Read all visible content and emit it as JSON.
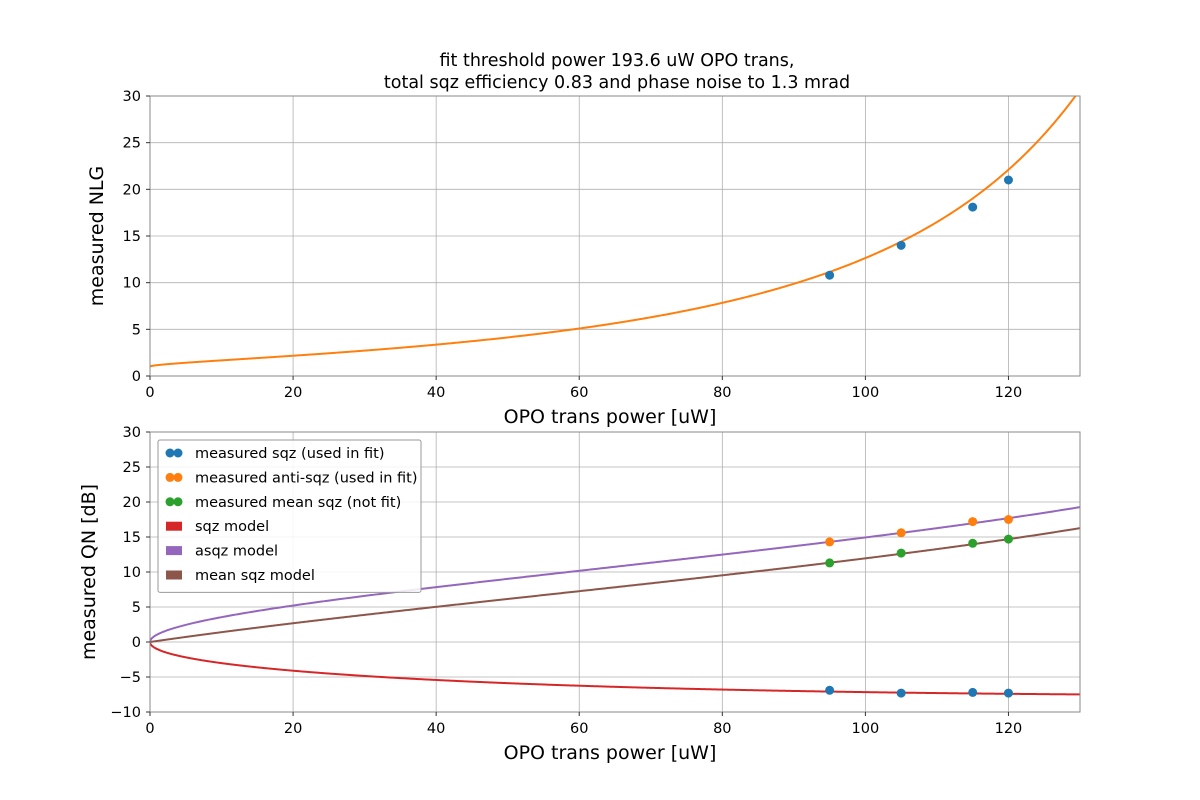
{
  "figure": {
    "title_line1": "fit threshold power 193.6 uW OPO trans,",
    "title_line2": "total sqz efficiency 0.83 and phase noise to 1.3 mrad"
  },
  "chart_data": [
    {
      "type": "scatter",
      "xlabel": "OPO trans power [uW]",
      "ylabel": "measured NLG",
      "xlim": [
        0,
        130
      ],
      "ylim": [
        0,
        30
      ],
      "xticks": [
        0,
        20,
        40,
        60,
        80,
        100,
        120
      ],
      "yticks": [
        0,
        5,
        10,
        15,
        20,
        25,
        30
      ],
      "grid": true,
      "series": [
        {
          "kind": "points",
          "color": "#1f77b4",
          "x": [
            95,
            105,
            115,
            120
          ],
          "y": [
            10.8,
            14.0,
            18.1,
            21.0
          ]
        },
        {
          "kind": "curve",
          "color": "#ff7f0e",
          "model": "nlg",
          "threshold": 193.6,
          "x_range": [
            0,
            130
          ]
        }
      ]
    },
    {
      "type": "scatter",
      "xlabel": "OPO trans power [uW]",
      "ylabel": "measured QN [dB]",
      "xlim": [
        0,
        130
      ],
      "ylim": [
        -10,
        30
      ],
      "xticks": [
        0,
        20,
        40,
        60,
        80,
        100,
        120
      ],
      "yticks": [
        -10,
        -5,
        0,
        5,
        10,
        15,
        20,
        25,
        30
      ],
      "grid": true,
      "legend_position": "upper-left",
      "series": [
        {
          "kind": "points",
          "name": "measured sqz (used in fit)",
          "color": "#1f77b4",
          "x": [
            95,
            105,
            115,
            120
          ],
          "y": [
            -6.9,
            -7.3,
            -7.2,
            -7.3
          ]
        },
        {
          "kind": "points",
          "name": "measured anti-sqz (used in fit)",
          "color": "#ff7f0e",
          "x": [
            95,
            105,
            115,
            120
          ],
          "y": [
            14.3,
            15.6,
            17.2,
            17.5
          ]
        },
        {
          "kind": "points",
          "name": "measured mean sqz (not fit)",
          "color": "#2ca02c",
          "x": [
            95,
            105,
            115,
            120
          ],
          "y": [
            11.3,
            12.7,
            14.1,
            14.7
          ]
        },
        {
          "kind": "curve",
          "name": "sqz model",
          "color": "#d62728",
          "model": "sqz",
          "threshold": 193.6,
          "efficiency": 0.83,
          "phase_noise_mrad": 1.3,
          "x_range": [
            0,
            130
          ]
        },
        {
          "kind": "curve",
          "name": "asqz model",
          "color": "#9467bd",
          "model": "asqz",
          "threshold": 193.6,
          "efficiency": 0.83,
          "phase_noise_mrad": 1.3,
          "x_range": [
            0,
            130
          ]
        },
        {
          "kind": "curve",
          "name": "mean sqz model",
          "color": "#8c564b",
          "model": "mean",
          "threshold": 193.6,
          "efficiency": 0.83,
          "phase_noise_mrad": 1.3,
          "x_range": [
            0,
            130
          ]
        }
      ]
    }
  ]
}
